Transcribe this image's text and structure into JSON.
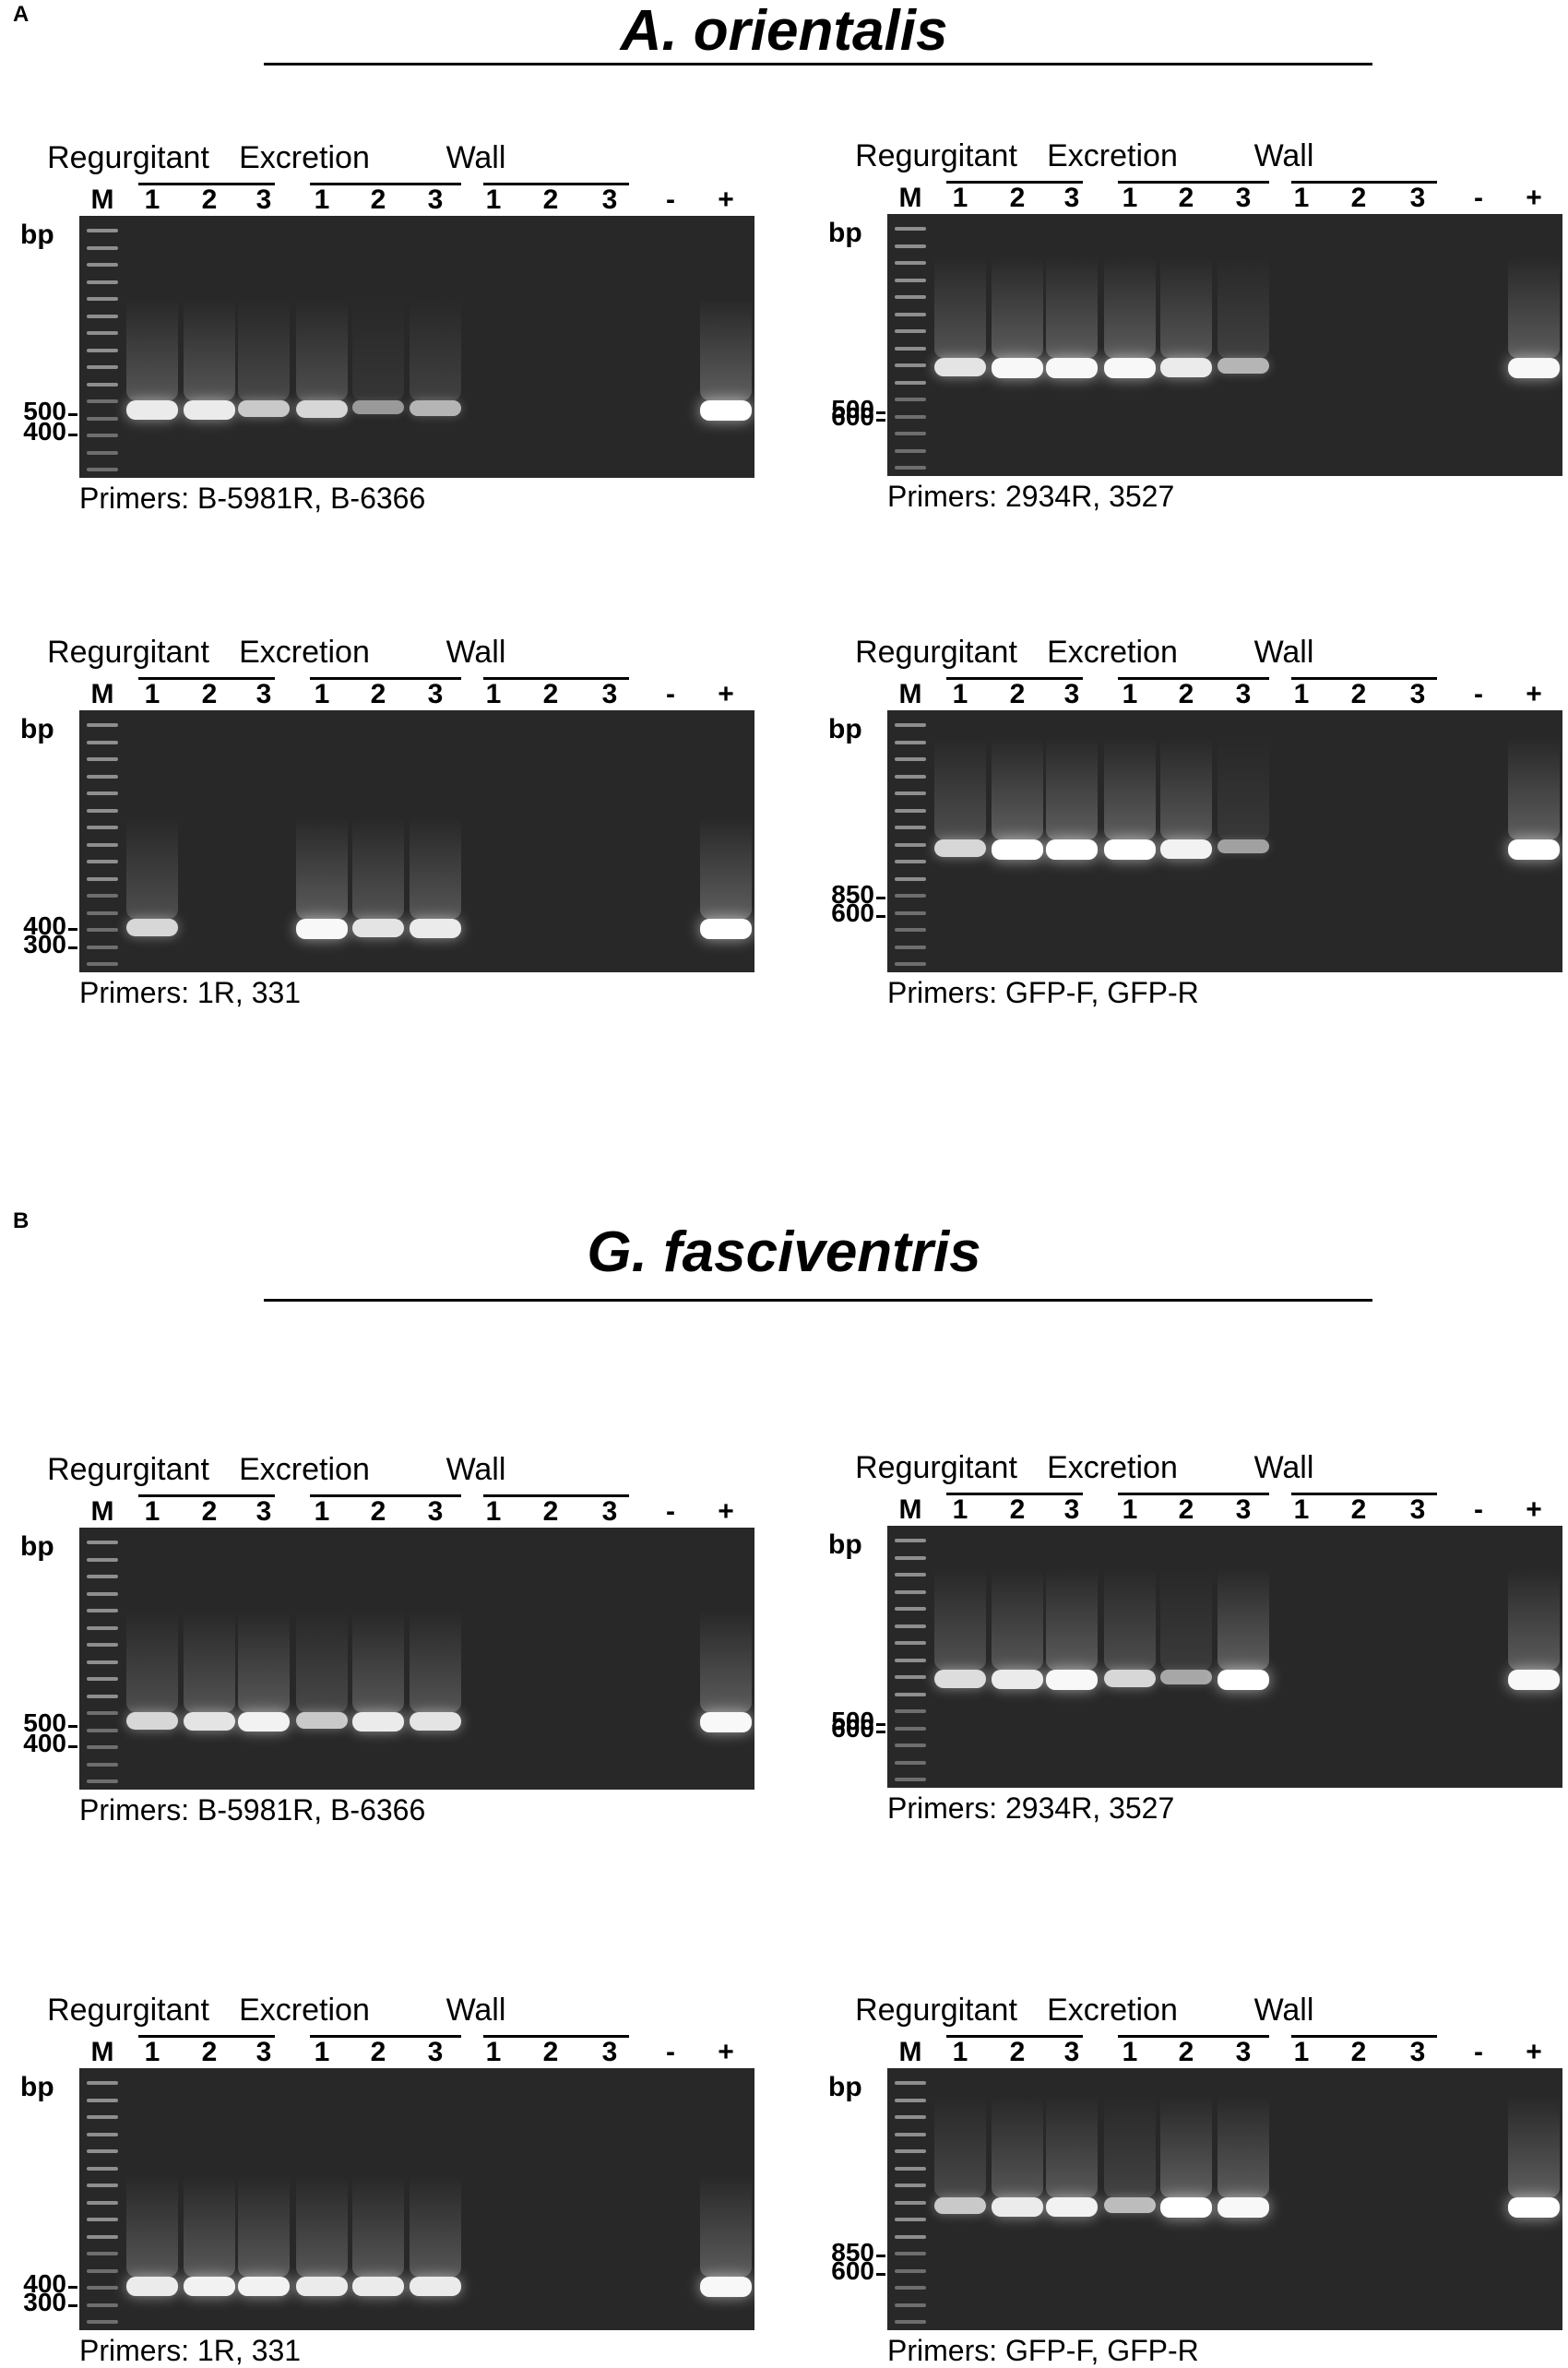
{
  "panel_A": {
    "letter": "A",
    "species": "A. orientalis",
    "gels": [
      {
        "id": "A1",
        "groups": [
          "Regurgitant",
          "Excretion",
          "Wall"
        ],
        "lanes": [
          "M",
          "1",
          "2",
          "3",
          "1",
          "2",
          "3",
          "1",
          "2",
          "3",
          "-",
          "+"
        ],
        "bp_label": "bp",
        "size_labels": [
          "500",
          "400"
        ],
        "primers": "Primers: B-5981R, B-6366"
      },
      {
        "id": "A2",
        "groups": [
          "Regurgitant",
          "Excretion",
          "Wall"
        ],
        "lanes": [
          "M",
          "1",
          "2",
          "3",
          "1",
          "2",
          "3",
          "1",
          "2",
          "3",
          "-",
          "+"
        ],
        "bp_label": "bp",
        "size_labels": [
          "600",
          "500"
        ],
        "primers": "Primers: 2934R, 3527"
      },
      {
        "id": "A3",
        "groups": [
          "Regurgitant",
          "Excretion",
          "Wall"
        ],
        "lanes": [
          "M",
          "1",
          "2",
          "3",
          "1",
          "2",
          "3",
          "1",
          "2",
          "3",
          "-",
          "+"
        ],
        "bp_label": "bp",
        "size_labels": [
          "400",
          "300"
        ],
        "primers": "Primers: 1R, 331"
      },
      {
        "id": "A4",
        "groups": [
          "Regurgitant",
          "Excretion",
          "Wall"
        ],
        "lanes": [
          "M",
          "1",
          "2",
          "3",
          "1",
          "2",
          "3",
          "1",
          "2",
          "3",
          "-",
          "+"
        ],
        "bp_label": "bp",
        "size_labels": [
          "850",
          "600"
        ],
        "primers": "Primers: GFP-F,  GFP-R"
      }
    ]
  },
  "panel_B": {
    "letter": "B",
    "species": "G. fasciventris",
    "gels": [
      {
        "id": "B1",
        "groups": [
          "Regurgitant",
          "Excretion",
          "Wall"
        ],
        "lanes": [
          "M",
          "1",
          "2",
          "3",
          "1",
          "2",
          "3",
          "1",
          "2",
          "3",
          "-",
          "+"
        ],
        "bp_label": "bp",
        "size_labels": [
          "500",
          "400"
        ],
        "primers": "Primers: B-5981R, B-6366"
      },
      {
        "id": "B2",
        "groups": [
          "Regurgitant",
          "Excretion",
          "Wall"
        ],
        "lanes": [
          "M",
          "1",
          "2",
          "3",
          "1",
          "2",
          "3",
          "1",
          "2",
          "3",
          "-",
          "+"
        ],
        "bp_label": "bp",
        "size_labels": [
          "600",
          "500"
        ],
        "primers": "Primers: 2934R, 3527"
      },
      {
        "id": "B3",
        "groups": [
          "Regurgitant",
          "Excretion",
          "Wall"
        ],
        "lanes": [
          "M",
          "1",
          "2",
          "3",
          "1",
          "2",
          "3",
          "1",
          "2",
          "3",
          "-",
          "+"
        ],
        "bp_label": "bp",
        "size_labels": [
          "400",
          "300"
        ],
        "primers": "Primers: 1R, 331"
      },
      {
        "id": "B4",
        "groups": [
          "Regurgitant",
          "Excretion",
          "Wall"
        ],
        "lanes": [
          "M",
          "1",
          "2",
          "3",
          "1",
          "2",
          "3",
          "1",
          "2",
          "3",
          "-",
          "+"
        ],
        "bp_label": "bp",
        "size_labels": [
          "850",
          "600"
        ],
        "primers": "Primers: GFP-F,  GFP-R"
      }
    ]
  },
  "band_intensity": {
    "A1": [
      0.85,
      0.85,
      0.6,
      0.7,
      0.25,
      0.45,
      0,
      0,
      0,
      0,
      1.0
    ],
    "A2": [
      0.8,
      0.95,
      0.95,
      0.95,
      0.85,
      0.45,
      0,
      0,
      0,
      0,
      0.95
    ],
    "A3": [
      0.7,
      0,
      0,
      0.95,
      0.8,
      0.85,
      0,
      0,
      0,
      0,
      1.0
    ],
    "A4": [
      0.7,
      1.0,
      1.0,
      1.0,
      0.9,
      0.3,
      0,
      0,
      0,
      0,
      1.0
    ],
    "B1": [
      0.7,
      0.8,
      0.9,
      0.6,
      0.85,
      0.8,
      0,
      0,
      0,
      0,
      0.95
    ],
    "B2": [
      0.75,
      0.85,
      0.95,
      0.7,
      0.35,
      1.0,
      0,
      0,
      0,
      0,
      0.95
    ],
    "B3": [
      0.85,
      0.9,
      0.9,
      0.85,
      0.85,
      0.85,
      0,
      0,
      0,
      0,
      0.95
    ],
    "B4": [
      0.6,
      0.85,
      0.9,
      0.5,
      1.0,
      0.95,
      0,
      0,
      0,
      0,
      1.0
    ]
  }
}
